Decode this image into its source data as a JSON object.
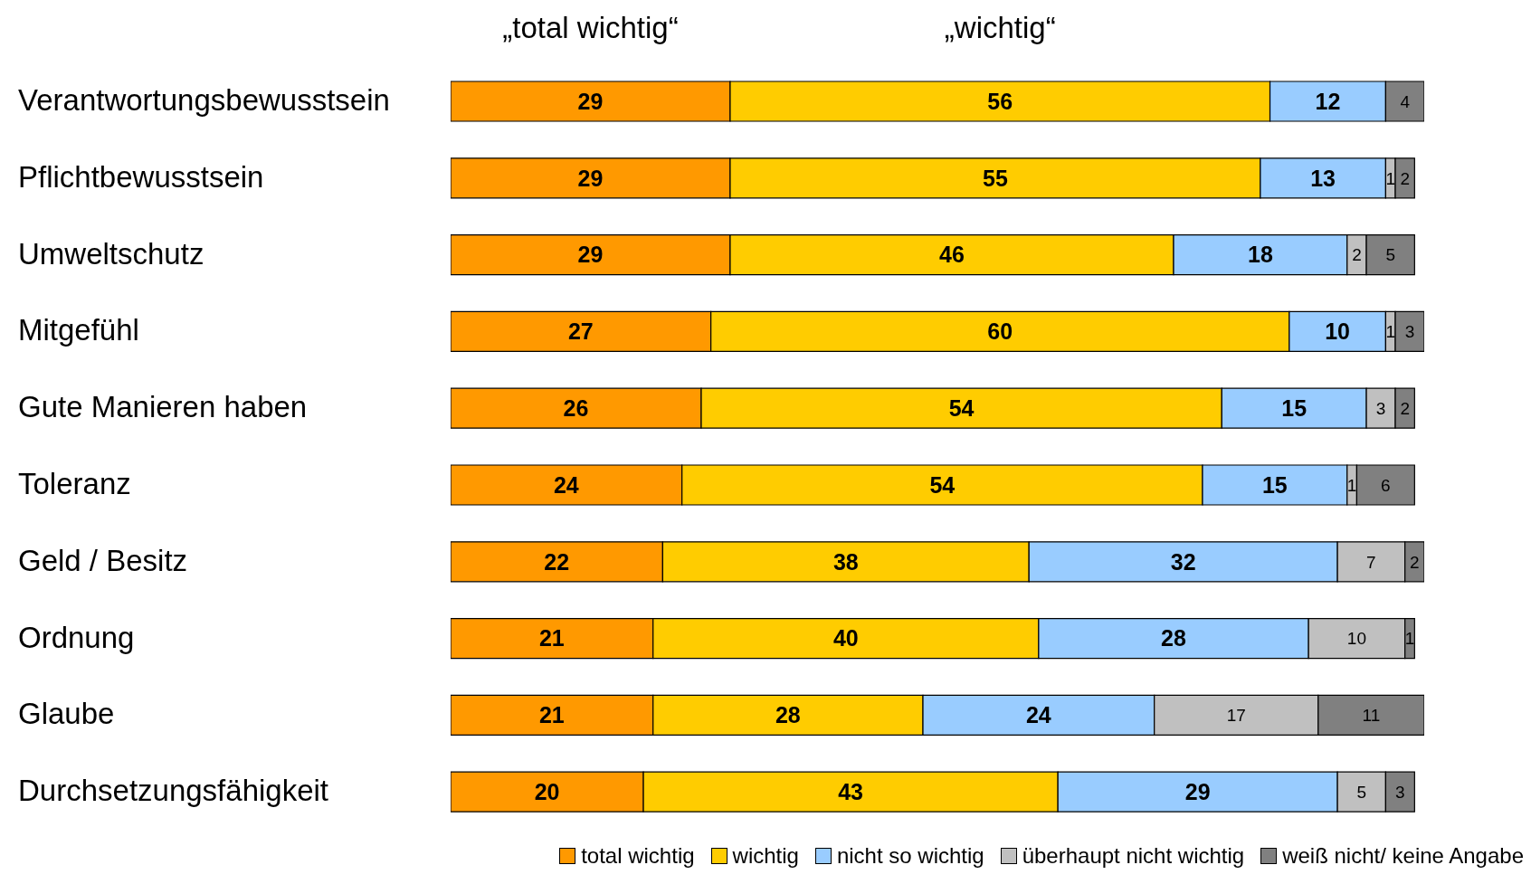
{
  "chart_data": {
    "type": "bar",
    "orientation": "horizontal",
    "stacked": true,
    "data_labels": true,
    "legend": "bottom",
    "categories": [
      "Verantwortungsbewusstsein",
      "Pflichtbewusstsein",
      "Umweltschutz",
      "Mitgefühl",
      "Gute Manieren haben",
      "Toleranz",
      "Geld / Besitz",
      "Ordnung",
      "Glaube",
      "Durchsetzungsfähigkeit"
    ],
    "annotations": [
      "„total wichtig“",
      "„wichtig“"
    ],
    "series": [
      {
        "name": "total wichtig",
        "color": "#ff9900",
        "values": [
          29,
          29,
          29,
          27,
          26,
          24,
          22,
          21,
          21,
          20
        ]
      },
      {
        "name": "wichtig",
        "color": "#ffcc00",
        "values": [
          56,
          55,
          46,
          60,
          54,
          54,
          38,
          40,
          28,
          43
        ]
      },
      {
        "name": "nicht so wichtig",
        "color": "#99ccff",
        "values": [
          12,
          13,
          18,
          10,
          15,
          15,
          32,
          28,
          24,
          29
        ]
      },
      {
        "name": "überhaupt nicht wichtig",
        "color": "#c0c0c0",
        "values": [
          null,
          1,
          2,
          1,
          3,
          1,
          7,
          10,
          17,
          5
        ]
      },
      {
        "name": "weiß nicht/ keine Angabe",
        "color": "#808080",
        "values": [
          4,
          2,
          5,
          3,
          2,
          6,
          2,
          1,
          11,
          3
        ]
      }
    ]
  }
}
